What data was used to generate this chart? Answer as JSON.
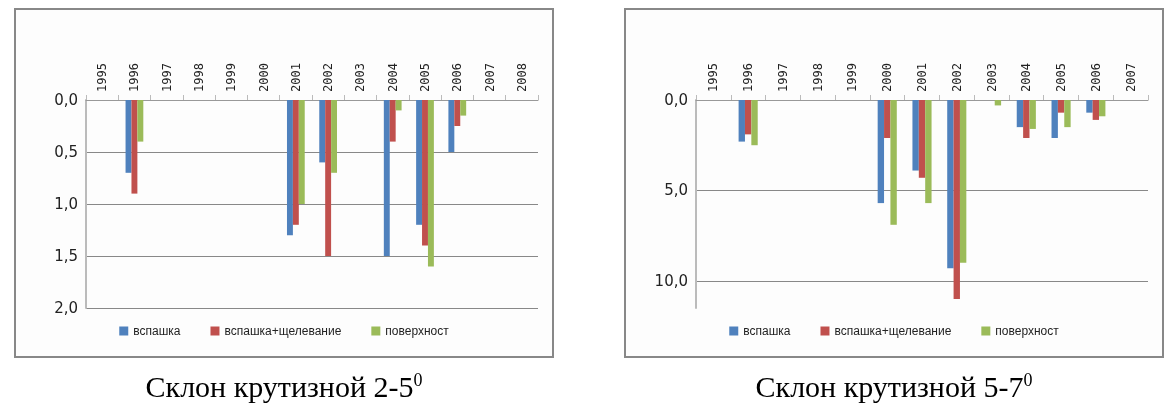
{
  "chart_data": [
    {
      "type": "bar",
      "title": "Склон крутизной 2-5$^{0}$",
      "categories": [
        "1995",
        "1996",
        "1997",
        "1998",
        "1999",
        "2000",
        "2001",
        "2002",
        "2003",
        "2004",
        "2005",
        "2006",
        "2007",
        "2008"
      ],
      "series": [
        {
          "name": "вспашка",
          "color": "#4f81bd",
          "values": [
            null,
            0.7,
            null,
            null,
            null,
            null,
            1.3,
            0.6,
            null,
            1.5,
            1.2,
            0.5,
            null,
            null
          ]
        },
        {
          "name": "вспашка+щелевание",
          "color": "#c0504d",
          "values": [
            null,
            0.9,
            null,
            null,
            null,
            null,
            1.2,
            1.5,
            null,
            0.4,
            1.4,
            0.25,
            null,
            null
          ]
        },
        {
          "name": "поверхност",
          "color": "#9bbb59",
          "values": [
            null,
            0.4,
            null,
            null,
            null,
            null,
            1.0,
            0.7,
            null,
            0.1,
            1.6,
            0.15,
            null,
            null
          ]
        }
      ],
      "ylim": [
        2,
        0
      ],
      "yticks": [
        {
          "value": 0,
          "label": "0,0"
        },
        {
          "value": 0.5,
          "label": "0,5"
        },
        {
          "value": 1,
          "label": "1,0"
        },
        {
          "value": 1.5,
          "label": "1,5"
        },
        {
          "value": 2,
          "label": "2,0"
        }
      ],
      "grid": "y",
      "legend": "bottom"
    },
    {
      "type": "bar",
      "title": "Склон крутизной 5-7$^{0}$",
      "categories": [
        "1995",
        "1996",
        "1997",
        "1998",
        "1999",
        "2000",
        "2001",
        "2002",
        "2003",
        "2004",
        "2005",
        "2006",
        "2007"
      ],
      "series": [
        {
          "name": "вспашка",
          "color": "#4f81bd",
          "values": [
            null,
            2.3,
            null,
            null,
            null,
            5.7,
            3.9,
            9.3,
            null,
            1.5,
            2.1,
            0.7,
            null
          ]
        },
        {
          "name": "вспашка+щелевание",
          "color": "#c0504d",
          "values": [
            null,
            1.9,
            null,
            null,
            null,
            2.1,
            4.3,
            11.0,
            null,
            2.1,
            0.7,
            1.1,
            null
          ]
        },
        {
          "name": "поверхност",
          "color": "#9bbb59",
          "values": [
            null,
            2.5,
            null,
            null,
            null,
            6.9,
            5.7,
            9.0,
            0.3,
            1.6,
            1.5,
            0.9,
            null
          ]
        }
      ],
      "ylim": [
        11.5,
        0
      ],
      "yticks": [
        {
          "value": 0,
          "label": "0,0"
        },
        {
          "value": 5,
          "label": "5,0"
        },
        {
          "value": 10,
          "label": "10,0"
        }
      ],
      "grid": "y",
      "legend": "bottom"
    }
  ]
}
